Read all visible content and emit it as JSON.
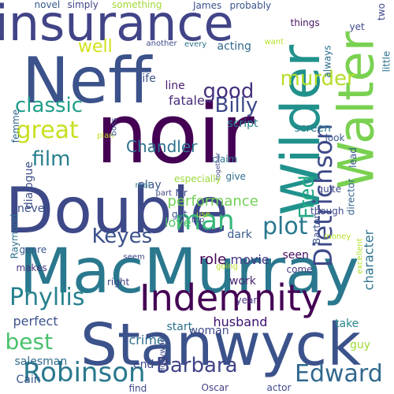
{
  "word_cloud": {
    "words": [
      {
        "text": "MacMurray",
        "color": "#2a788e",
        "orientation": "horizontal"
      },
      {
        "text": "Stanwyck",
        "color": "#3b528b",
        "orientation": "horizontal"
      },
      {
        "text": "noir",
        "color": "#440154",
        "orientation": "horizontal"
      },
      {
        "text": "Double",
        "color": "#3e4989",
        "orientation": "horizontal"
      },
      {
        "text": "Neff",
        "color": "#3b528b",
        "orientation": "horizontal"
      },
      {
        "text": "insurance",
        "color": "#414487",
        "orientation": "horizontal"
      },
      {
        "text": "Wilder",
        "color": "#21918c",
        "orientation": "vertical"
      },
      {
        "text": "Walter",
        "color": "#7ad151",
        "orientation": "vertical"
      },
      {
        "text": "Indemnity",
        "color": "#440154",
        "orientation": "horizontal"
      },
      {
        "text": "Dietrichson",
        "color": "#3e4989",
        "orientation": "vertical"
      },
      {
        "text": "Fred",
        "color": "#22a884",
        "orientation": "vertical"
      },
      {
        "text": "Robinson",
        "color": "#2a788e",
        "orientation": "horizontal"
      },
      {
        "text": "Phyllis",
        "color": "#26828e",
        "orientation": "horizontal"
      },
      {
        "text": "Edward",
        "color": "#31688e",
        "orientation": "horizontal"
      },
      {
        "text": "Barbara",
        "color": "#414487",
        "orientation": "horizontal"
      },
      {
        "text": "murder",
        "color": "#b5de2b",
        "orientation": "horizontal"
      },
      {
        "text": "Billy",
        "color": "#3e4989",
        "orientation": "horizontal"
      },
      {
        "text": "great",
        "color": "#c8e020",
        "orientation": "horizontal"
      },
      {
        "text": "classic",
        "color": "#1f9e89",
        "orientation": "horizontal"
      },
      {
        "text": "Keyes",
        "color": "#3b528b",
        "orientation": "horizontal"
      },
      {
        "text": "man",
        "color": "#35b779",
        "orientation": "horizontal"
      },
      {
        "text": "plot",
        "color": "#2a788e",
        "orientation": "horizontal"
      },
      {
        "text": "best",
        "color": "#4ac16d",
        "orientation": "horizontal"
      },
      {
        "text": "film",
        "color": "#277f8e",
        "orientation": "horizontal"
      },
      {
        "text": "good",
        "color": "#46327e",
        "orientation": "horizontal"
      },
      {
        "text": "well",
        "color": "#d2e21b",
        "orientation": "horizontal"
      },
      {
        "text": "Chandler",
        "color": "#2c718e",
        "orientation": "horizontal"
      },
      {
        "text": "performance",
        "color": "#73d056",
        "orientation": "horizontal"
      },
      {
        "text": "role",
        "color": "#440154",
        "orientation": "horizontal"
      },
      {
        "text": "husband",
        "color": "#3b0f70",
        "orientation": "horizontal"
      },
      {
        "text": "perfect",
        "color": "#3b528b",
        "orientation": "horizontal"
      },
      {
        "text": "salesman",
        "color": "#2f6b8e",
        "orientation": "horizontal"
      },
      {
        "text": "movie",
        "color": "#443983",
        "orientation": "horizontal"
      },
      {
        "text": "character",
        "color": "#2c728e",
        "orientation": "vertical"
      },
      {
        "text": "woman",
        "color": "#3e4989",
        "orientation": "horizontal"
      },
      {
        "text": "crime",
        "color": "#2e6e8e",
        "orientation": "horizontal"
      },
      {
        "text": "Cain",
        "color": "#38598c",
        "orientation": "horizontal"
      },
      {
        "text": "guy",
        "color": "#a0da39",
        "orientation": "horizontal"
      },
      {
        "text": "fatale",
        "color": "#472d7b",
        "orientation": "horizontal"
      },
      {
        "text": "love",
        "color": "#52c569",
        "orientation": "horizontal"
      },
      {
        "text": "script",
        "color": "#26818e",
        "orientation": "horizontal"
      },
      {
        "text": "screen",
        "color": "#287d8e",
        "orientation": "horizontal"
      },
      {
        "text": "seen",
        "color": "#460a5d",
        "orientation": "horizontal"
      },
      {
        "text": "work",
        "color": "#481f70",
        "orientation": "horizontal"
      },
      {
        "text": "dark",
        "color": "#365c8d",
        "orientation": "horizontal"
      },
      {
        "text": "acting",
        "color": "#31688e",
        "orientation": "horizontal"
      },
      {
        "text": "claim",
        "color": "#2a768e",
        "orientation": "horizontal"
      },
      {
        "text": "director",
        "color": "#34618d",
        "orientation": "vertical"
      },
      {
        "text": "dialogue",
        "color": "#3d4e8a",
        "orientation": "vertical"
      },
      {
        "text": "femme",
        "color": "#31668e",
        "orientation": "vertical"
      },
      {
        "text": "Raymond",
        "color": "#2d708e",
        "orientation": "vertical"
      },
      {
        "text": "genre",
        "color": "#39568c",
        "orientation": "horizontal"
      },
      {
        "text": "makes",
        "color": "#46337e",
        "orientation": "horizontal"
      },
      {
        "text": "never",
        "color": "#3b518b",
        "orientation": "horizontal"
      },
      {
        "text": "life",
        "color": "#3a548c",
        "orientation": "horizontal"
      },
      {
        "text": "line",
        "color": "#481b6d",
        "orientation": "horizontal"
      },
      {
        "text": "play",
        "color": "#3b528b",
        "orientation": "horizontal"
      },
      {
        "text": "come",
        "color": "#443983",
        "orientation": "horizontal"
      },
      {
        "text": "year",
        "color": "#453781",
        "orientation": "horizontal"
      },
      {
        "text": "take",
        "color": "#25848e",
        "orientation": "horizontal"
      },
      {
        "text": "end",
        "color": "#3f4788",
        "orientation": "horizontal"
      },
      {
        "text": "start",
        "color": "#2c738e",
        "orientation": "horizontal"
      },
      {
        "text": "find",
        "color": "#3e4a89",
        "orientation": "horizontal"
      },
      {
        "text": "actor",
        "color": "#3e4a89",
        "orientation": "horizontal"
      },
      {
        "text": "right",
        "color": "#404588",
        "orientation": "horizontal"
      },
      {
        "text": "seem",
        "color": "#3f4788",
        "orientation": "horizontal"
      },
      {
        "text": "Oscar",
        "color": "#424186",
        "orientation": "horizontal"
      },
      {
        "text": "Barton",
        "color": "#3c4f8a",
        "orientation": "vertical"
      },
      {
        "text": "though",
        "color": "#3e4989",
        "orientation": "horizontal"
      },
      {
        "text": "look",
        "color": "#38598c",
        "orientation": "horizontal"
      },
      {
        "text": "quite",
        "color": "#3f4889",
        "orientation": "horizontal"
      },
      {
        "text": "things",
        "color": "#471365",
        "orientation": "horizontal"
      },
      {
        "text": "yet",
        "color": "#3e4989",
        "orientation": "horizontal"
      },
      {
        "text": "two",
        "color": "#3e4a89",
        "orientation": "vertical"
      },
      {
        "text": "always",
        "color": "#2e6e8e",
        "orientation": "vertical"
      },
      {
        "text": "little",
        "color": "#2d718e",
        "orientation": "vertical"
      },
      {
        "text": "James",
        "color": "#3c508b",
        "orientation": "horizontal"
      },
      {
        "text": "probably",
        "color": "#3a538b",
        "orientation": "horizontal"
      },
      {
        "text": "something",
        "color": "#a2da37",
        "orientation": "horizontal"
      },
      {
        "text": "simply",
        "color": "#404588",
        "orientation": "horizontal"
      },
      {
        "text": "novel",
        "color": "#365c8d",
        "orientation": "horizontal"
      },
      {
        "text": "another",
        "color": "#3e4989",
        "orientation": "horizontal"
      },
      {
        "text": "every",
        "color": "#2c738e",
        "orientation": "horizontal"
      },
      {
        "text": "want",
        "color": "#b8de29",
        "orientation": "horizontal"
      },
      {
        "text": "plan",
        "color": "#c2df23",
        "orientation": "horizontal"
      },
      {
        "text": "boss",
        "color": "#3b528b",
        "orientation": "vertical"
      },
      {
        "text": "part",
        "color": "#3f4788",
        "orientation": "horizontal"
      },
      {
        "text": "give",
        "color": "#2e6d8e",
        "orientation": "horizontal"
      },
      {
        "text": "together",
        "color": "#404588",
        "orientation": "vertical"
      },
      {
        "text": "Mr",
        "color": "#3e4989",
        "orientation": "horizontal"
      },
      {
        "text": "real",
        "color": "#2c738e",
        "orientation": "horizontal"
      },
      {
        "text": "especially",
        "color": "#9bd93c",
        "orientation": "horizontal"
      },
      {
        "text": "lead",
        "color": "#38588c",
        "orientation": "vertical"
      },
      {
        "text": "excellent",
        "color": "#b5de2b",
        "orientation": "vertical"
      },
      {
        "text": "got",
        "color": "#3b528b",
        "orientation": "horizontal"
      },
      {
        "text": "use",
        "color": "#c0df25",
        "orientation": "horizontal"
      },
      {
        "text": "top",
        "color": "#3b528b",
        "orientation": "horizontal"
      },
      {
        "text": "money",
        "color": "#b5de2b",
        "orientation": "horizontal"
      },
      {
        "text": "going",
        "color": "#b8de29",
        "orientation": "horizontal"
      },
      {
        "text": "Hollywood",
        "color": "#3e4989",
        "orientation": "vertical"
      }
    ]
  }
}
